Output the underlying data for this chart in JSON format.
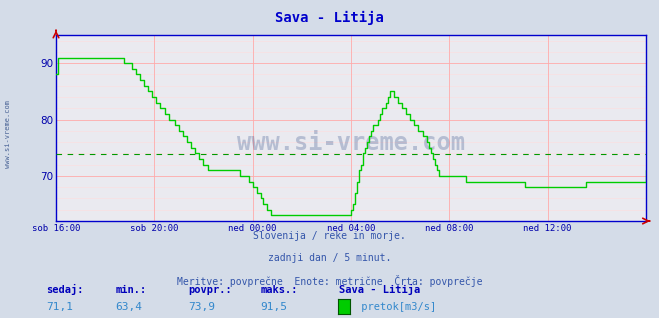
{
  "title": "Sava - Litija",
  "bg_color": "#d4dce8",
  "plot_bg_color": "#eaeaf0",
  "grid_color_major": "#ffaaaa",
  "grid_color_minor": "#ffdddd",
  "line_color": "#00cc00",
  "line_width": 1.0,
  "avg_line_value": 73.9,
  "avg_line_color": "#009900",
  "x_labels": [
    "sob 16:00",
    "sob 20:00",
    "ned 00:00",
    "ned 04:00",
    "ned 08:00",
    "ned 12:00"
  ],
  "x_ticks_norm": [
    0.0,
    0.1667,
    0.3333,
    0.5,
    0.6667,
    0.8333
  ],
  "total_points": 289,
  "ylim_min": 62,
  "ylim_max": 95,
  "yticks": [
    70,
    80,
    90
  ],
  "yminor_step": 2,
  "ylabel_color": "#0000aa",
  "axis_color": "#0000cc",
  "title_color": "#0000cc",
  "title_fontsize": 10,
  "subtitle_line1": "Slovenija / reke in morje.",
  "subtitle_line2": "zadnji dan / 5 minut.",
  "subtitle_line3": "Meritve: povprečne  Enote: metrične  Črta: povprečje",
  "subtitle_color": "#3355aa",
  "footer_label_color": "#0000bb",
  "footer_value_color": "#3388cc",
  "sedaj": "71,1",
  "min_val": "63,4",
  "povpr": "73,9",
  "maks": "91,5",
  "station": "Sava - Litija",
  "legend_label": " pretok[m3/s]",
  "legend_color": "#00cc00",
  "watermark": "www.si-vreme.com",
  "watermark_color": "#1a3a7a",
  "left_text": "www.si-vreme.com",
  "data_y": [
    88,
    91,
    91,
    91,
    91,
    91,
    91,
    91,
    91,
    91,
    91,
    91,
    91,
    91,
    91,
    91,
    91,
    91,
    91,
    91,
    91,
    91,
    91,
    91,
    91,
    91,
    91,
    91,
    91,
    91,
    91,
    91,
    91,
    90,
    90,
    90,
    90,
    89,
    89,
    88,
    88,
    87,
    87,
    86,
    86,
    85,
    85,
    84,
    84,
    83,
    83,
    82,
    82,
    81,
    81,
    80,
    80,
    80,
    79,
    79,
    78,
    78,
    77,
    77,
    76,
    76,
    75,
    75,
    74,
    74,
    73,
    73,
    72,
    72,
    71,
    71,
    71,
    71,
    71,
    71,
    71,
    71,
    71,
    71,
    71,
    71,
    71,
    71,
    71,
    71,
    70,
    70,
    70,
    70,
    69,
    69,
    68,
    68,
    67,
    67,
    66,
    65,
    65,
    64,
    64,
    63,
    63,
    63,
    63,
    63,
    63,
    63,
    63,
    63,
    63,
    63,
    63,
    63,
    63,
    63,
    63,
    63,
    63,
    63,
    63,
    63,
    63,
    63,
    63,
    63,
    63,
    63,
    63,
    63,
    63,
    63,
    63,
    63,
    63,
    63,
    63,
    63,
    63,
    63,
    64,
    65,
    67,
    69,
    71,
    72,
    74,
    75,
    76,
    77,
    78,
    79,
    79,
    80,
    81,
    82,
    82,
    83,
    84,
    85,
    85,
    84,
    84,
    83,
    83,
    82,
    82,
    81,
    81,
    80,
    80,
    79,
    79,
    78,
    78,
    77,
    77,
    76,
    75,
    74,
    73,
    72,
    71,
    70,
    70,
    70,
    70,
    70,
    70,
    70,
    70,
    70,
    70,
    70,
    70,
    70,
    69,
    69,
    69,
    69,
    69,
    69,
    69,
    69,
    69,
    69,
    69,
    69,
    69,
    69,
    69,
    69,
    69,
    69,
    69,
    69,
    69,
    69,
    69,
    69,
    69,
    69,
    69,
    69,
    69,
    68,
    68,
    68,
    68,
    68,
    68,
    68,
    68,
    68,
    68,
    68,
    68,
    68,
    68,
    68,
    68,
    68,
    68,
    68,
    68,
    68,
    68,
    68,
    68,
    68,
    68,
    68,
    68,
    68,
    68,
    69,
    69,
    69,
    69,
    69,
    69,
    69,
    69,
    69,
    69,
    69,
    69,
    69,
    69,
    69,
    69,
    69,
    69,
    69,
    69,
    69,
    69,
    69,
    69,
    69,
    69,
    69,
    69,
    69,
    71,
    71,
    71,
    71
  ]
}
